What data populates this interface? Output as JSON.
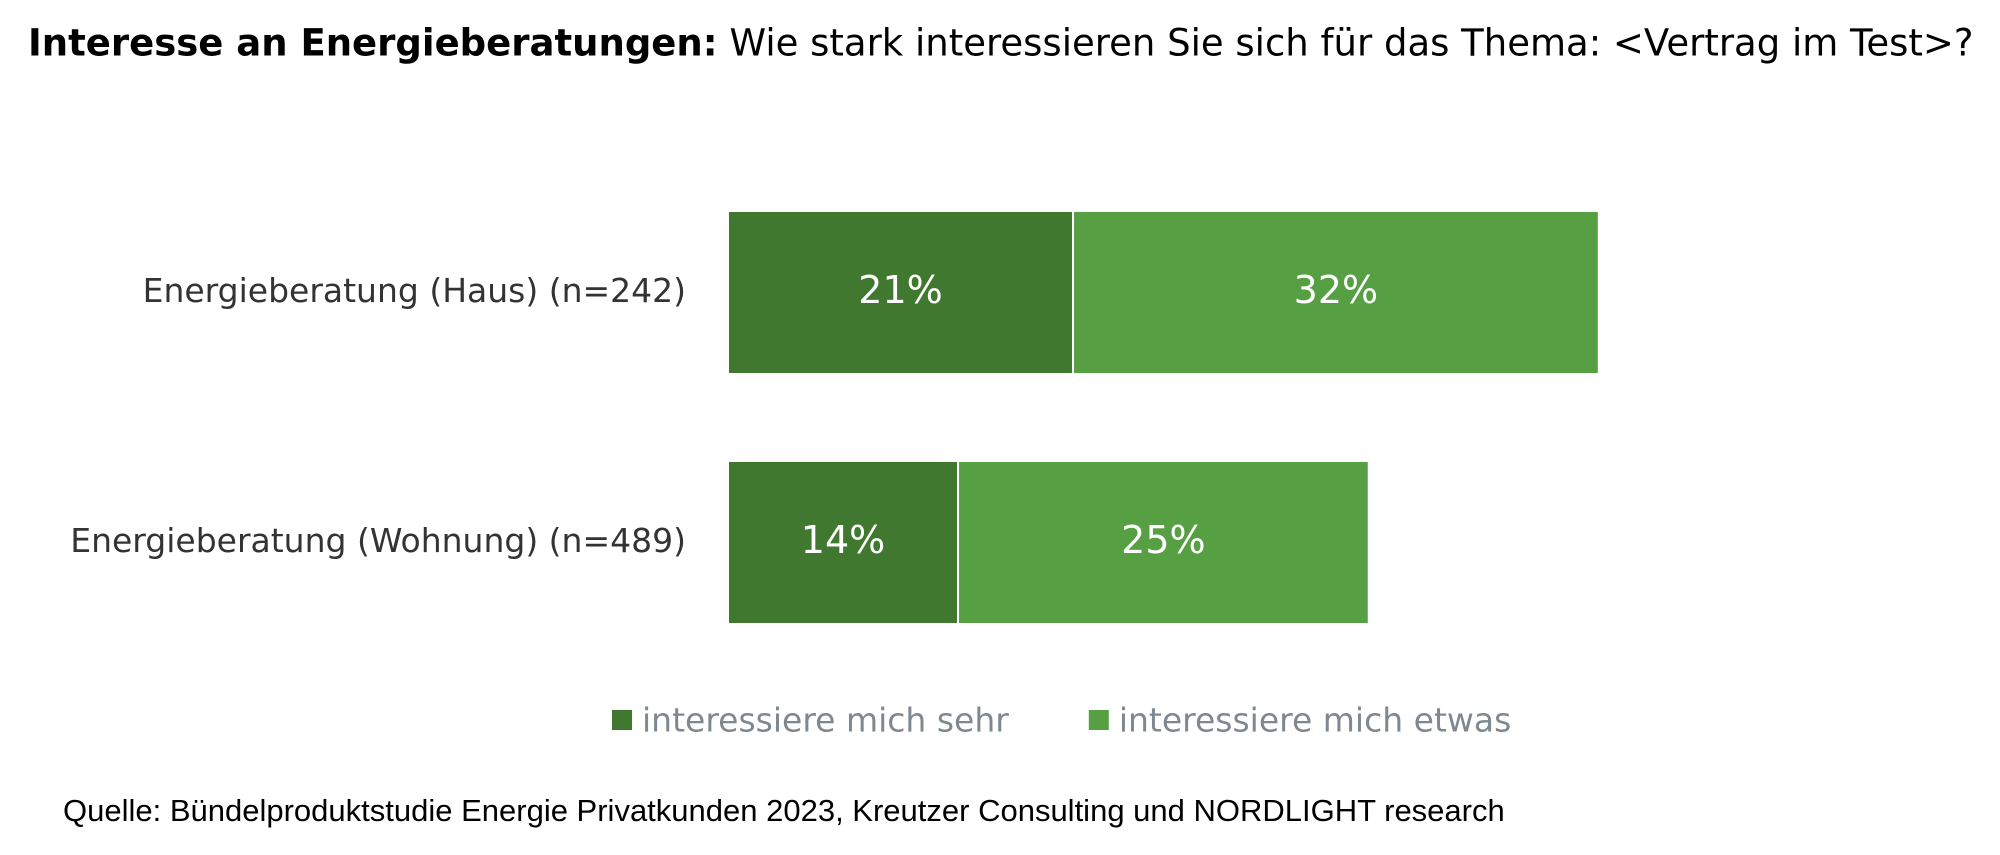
{
  "chart_data": {
    "type": "stacked-bar-horizontal",
    "title": "Interesse an Energieberatungen:",
    "subtitle": "Wie stark interessieren Sie sich für das Thema: <Vertrag im Test>?",
    "categories": [
      "Energieberatung (Haus) (n=242)",
      "Energieberatung (Wohnung) (n=489)"
    ],
    "series": [
      {
        "name": "interessiere mich sehr",
        "color": "#41782f",
        "values": [
          21,
          14
        ],
        "value_labels": [
          "21%",
          "14%"
        ]
      },
      {
        "name": "interessiere mich etwas",
        "color": "#56a043",
        "values": [
          32,
          25
        ],
        "value_labels": [
          "32%",
          "25%"
        ]
      }
    ],
    "source": "Quelle: Bündelproduktstudie Energie Privatkunden 2023, Kreutzer Consulting und NORDLIGHT research"
  }
}
